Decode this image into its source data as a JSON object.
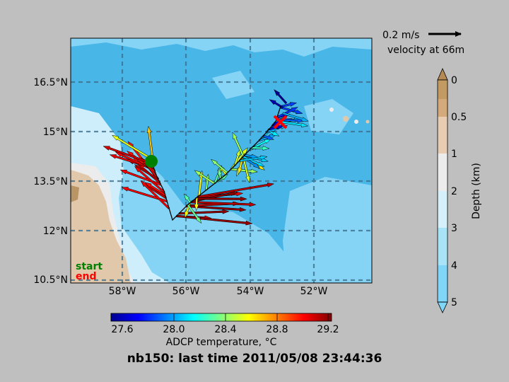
{
  "map": {
    "lat_ticks": [
      "16.5°N",
      "15°N",
      "13.5°N",
      "12°N",
      "10.5°N"
    ],
    "lon_ticks": [
      "58°W",
      "56°W",
      "54°W",
      "52°W"
    ],
    "legend_start": "start",
    "legend_end": "end",
    "title": "nb150: last time 2011/05/08 23:44:36"
  },
  "scale_arrow": {
    "value": "0.2 m/s",
    "caption": "velocity at 66m"
  },
  "temp_colorbar": {
    "label": "ADCP temperature, °C",
    "ticks": [
      "27.6",
      "28.0",
      "28.4",
      "28.8",
      "29.2"
    ],
    "range": [
      27.5,
      29.25
    ]
  },
  "depth_colorbar": {
    "label": "Depth (km)",
    "ticks": [
      "0",
      "0.5",
      "1",
      "2",
      "3",
      "4",
      "5"
    ],
    "colors": [
      "#c29a62",
      "#d4aa7a",
      "#e8cdb2",
      "#ececec",
      "#d6f0fb",
      "#a9e3f8",
      "#7fd6f8"
    ]
  },
  "colors": {
    "deep_ocean": "#86d4f5",
    "mid_ocean": "#49b6e8",
    "shallow": "#cfeefb",
    "land": "#e2c8ab",
    "start_marker": "#008000",
    "end_marker": "#ff0000",
    "background": "#bfbfbf"
  }
}
